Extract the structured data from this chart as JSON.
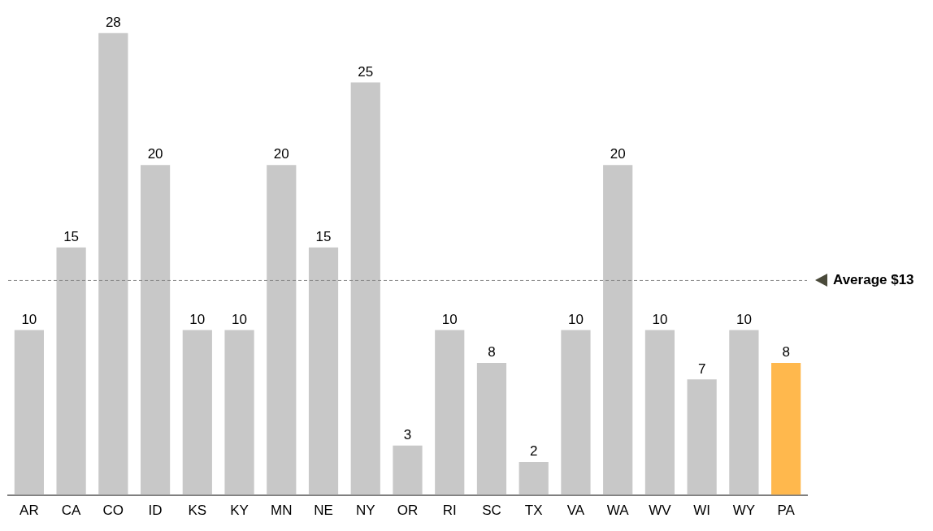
{
  "chart_data": {
    "type": "bar",
    "categories": [
      "AR",
      "CA",
      "CO",
      "ID",
      "KS",
      "KY",
      "MN",
      "NE",
      "NY",
      "OR",
      "RI",
      "SC",
      "TX",
      "VA",
      "WA",
      "WV",
      "WI",
      "WY",
      "PA"
    ],
    "values": [
      10,
      15,
      28,
      20,
      10,
      10,
      20,
      15,
      25,
      3,
      10,
      8,
      2,
      10,
      20,
      10,
      7,
      10,
      8
    ],
    "colors": [
      "#c8c8c8",
      "#c8c8c8",
      "#c8c8c8",
      "#c8c8c8",
      "#c8c8c8",
      "#c8c8c8",
      "#c8c8c8",
      "#c8c8c8",
      "#c8c8c8",
      "#c8c8c8",
      "#c8c8c8",
      "#c8c8c8",
      "#c8c8c8",
      "#c8c8c8",
      "#c8c8c8",
      "#c8c8c8",
      "#c8c8c8",
      "#c8c8c8",
      "#ffb84d"
    ],
    "data_labels": true,
    "ref_lines": [
      {
        "axis": "y",
        "value": 13,
        "label": "Average $13",
        "color": "#888888",
        "line_style": "dashed"
      }
    ],
    "grid": false,
    "legend": false,
    "tick_labels": "x"
  }
}
